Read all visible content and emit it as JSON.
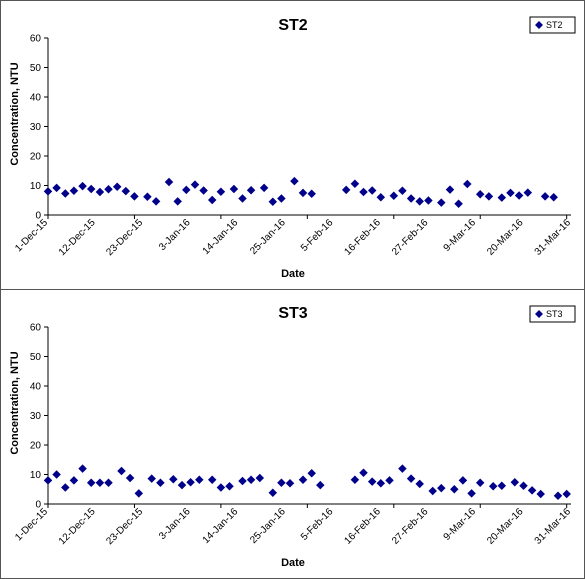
{
  "chart_data": [
    {
      "type": "scatter",
      "title": "ST2",
      "xlabel": "Date",
      "ylabel": "Concentration, NTU",
      "ylim": [
        0,
        60
      ],
      "yticks": [
        0,
        10,
        20,
        30,
        40,
        50,
        60
      ],
      "xlim": [
        "2015-12-01",
        "2016-03-31"
      ],
      "xtick_labels": [
        "1-Dec-15",
        "12-Dec-15",
        "23-Dec-15",
        "3-Jan-16",
        "14-Jan-16",
        "25-Jan-16",
        "5-Feb-16",
        "16-Feb-16",
        "27-Feb-16",
        "9-Mar-16",
        "20-Mar-16",
        "31-Mar-16"
      ],
      "xtick_dates": [
        "2015-12-01",
        "2015-12-12",
        "2015-12-23",
        "2016-01-03",
        "2016-01-14",
        "2016-01-25",
        "2016-02-05",
        "2016-02-16",
        "2016-02-27",
        "2016-03-09",
        "2016-03-20",
        "2016-03-31"
      ],
      "grid": false,
      "legend": "top-right",
      "marker_color": "#00008B",
      "series": [
        {
          "name": "ST2",
          "points": [
            [
              "2015-12-01",
              8
            ],
            [
              "2015-12-03",
              9.2
            ],
            [
              "2015-12-05",
              7.3
            ],
            [
              "2015-12-07",
              8.2
            ],
            [
              "2015-12-09",
              9.8
            ],
            [
              "2015-12-11",
              8.8
            ],
            [
              "2015-12-13",
              7.8
            ],
            [
              "2015-12-15",
              8.7
            ],
            [
              "2015-12-17",
              9.6
            ],
            [
              "2015-12-19",
              8.1
            ],
            [
              "2015-12-21",
              6.3
            ],
            [
              "2015-12-24",
              6.2
            ],
            [
              "2015-12-26",
              4.6
            ],
            [
              "2015-12-29",
              11.2
            ],
            [
              "2015-12-31",
              4.6
            ],
            [
              "2016-01-02",
              8.5
            ],
            [
              "2016-01-04",
              10.3
            ],
            [
              "2016-01-06",
              8.3
            ],
            [
              "2016-01-08",
              5.1
            ],
            [
              "2016-01-10",
              7.9
            ],
            [
              "2016-01-13",
              8.8
            ],
            [
              "2016-01-15",
              5.6
            ],
            [
              "2016-01-17",
              8.4
            ],
            [
              "2016-01-20",
              9.2
            ],
            [
              "2016-01-22",
              4.5
            ],
            [
              "2016-01-24",
              5.6
            ],
            [
              "2016-01-27",
              11.5
            ],
            [
              "2016-01-29",
              7.5
            ],
            [
              "2016-01-31",
              7.2
            ],
            [
              "2016-02-08",
              8.5
            ],
            [
              "2016-02-10",
              10.6
            ],
            [
              "2016-02-12",
              7.8
            ],
            [
              "2016-02-14",
              8.3
            ],
            [
              "2016-02-16",
              6
            ],
            [
              "2016-02-19",
              6.5
            ],
            [
              "2016-02-21",
              8.2
            ],
            [
              "2016-02-23",
              5.6
            ],
            [
              "2016-02-25",
              4.6
            ],
            [
              "2016-02-27",
              4.9
            ],
            [
              "2016-03-01",
              4.2
            ],
            [
              "2016-03-03",
              8.6
            ],
            [
              "2016-03-05",
              3.8
            ],
            [
              "2016-03-07",
              10.5
            ],
            [
              "2016-03-10",
              7
            ],
            [
              "2016-03-12",
              6.3
            ],
            [
              "2016-03-15",
              5.9
            ],
            [
              "2016-03-17",
              7.5
            ],
            [
              "2016-03-19",
              6.6
            ],
            [
              "2016-03-21",
              7.6
            ],
            [
              "2016-03-25",
              6.3
            ],
            [
              "2016-03-27",
              6
            ]
          ]
        }
      ]
    },
    {
      "type": "scatter",
      "title": "ST3",
      "xlabel": "Date",
      "ylabel": "Concentration, NTU",
      "ylim": [
        0,
        60
      ],
      "yticks": [
        0,
        10,
        20,
        30,
        40,
        50,
        60
      ],
      "xlim": [
        "2015-12-01",
        "2016-03-31"
      ],
      "xtick_labels": [
        "1-Dec-15",
        "12-Dec-15",
        "23-Dec-15",
        "3-Jan-16",
        "14-Jan-16",
        "25-Jan-16",
        "5-Feb-16",
        "16-Feb-16",
        "27-Feb-16",
        "9-Mar-16",
        "20-Mar-16",
        "31-Mar-16"
      ],
      "xtick_dates": [
        "2015-12-01",
        "2015-12-12",
        "2015-12-23",
        "2016-01-03",
        "2016-01-14",
        "2016-01-25",
        "2016-02-05",
        "2016-02-16",
        "2016-02-27",
        "2016-03-09",
        "2016-03-20",
        "2016-03-31"
      ],
      "grid": false,
      "legend": "top-right",
      "marker_color": "#00008B",
      "series": [
        {
          "name": "ST3",
          "points": [
            [
              "2015-12-01",
              8
            ],
            [
              "2015-12-03",
              10
            ],
            [
              "2015-12-05",
              5.6
            ],
            [
              "2015-12-07",
              8
            ],
            [
              "2015-12-09",
              12
            ],
            [
              "2015-12-11",
              7.2
            ],
            [
              "2015-12-13",
              7.2
            ],
            [
              "2015-12-15",
              7.2
            ],
            [
              "2015-12-18",
              11.2
            ],
            [
              "2015-12-20",
              8.8
            ],
            [
              "2015-12-22",
              3.6
            ],
            [
              "2015-12-25",
              8.6
            ],
            [
              "2015-12-27",
              7.2
            ],
            [
              "2015-12-30",
              8.4
            ],
            [
              "2016-01-01",
              6.4
            ],
            [
              "2016-01-03",
              7.4
            ],
            [
              "2016-01-05",
              8.2
            ],
            [
              "2016-01-08",
              8.2
            ],
            [
              "2016-01-10",
              5.6
            ],
            [
              "2016-01-12",
              6
            ],
            [
              "2016-01-15",
              7.8
            ],
            [
              "2016-01-17",
              8.2
            ],
            [
              "2016-01-19",
              8.8
            ],
            [
              "2016-01-22",
              3.8
            ],
            [
              "2016-01-24",
              7.2
            ],
            [
              "2016-01-26",
              7
            ],
            [
              "2016-01-29",
              8.2
            ],
            [
              "2016-01-31",
              10.4
            ],
            [
              "2016-02-02",
              6.4
            ],
            [
              "2016-02-10",
              8.2
            ],
            [
              "2016-02-12",
              10.6
            ],
            [
              "2016-02-14",
              7.6
            ],
            [
              "2016-02-16",
              7
            ],
            [
              "2016-02-18",
              8
            ],
            [
              "2016-02-21",
              12
            ],
            [
              "2016-02-23",
              8.6
            ],
            [
              "2016-02-25",
              6.8
            ],
            [
              "2016-02-28",
              4.4
            ],
            [
              "2016-03-01",
              5.4
            ],
            [
              "2016-03-04",
              5
            ],
            [
              "2016-03-06",
              8
            ],
            [
              "2016-03-08",
              3.6
            ],
            [
              "2016-03-10",
              7.2
            ],
            [
              "2016-03-13",
              6
            ],
            [
              "2016-03-15",
              6.2
            ],
            [
              "2016-03-18",
              7.4
            ],
            [
              "2016-03-20",
              6.2
            ],
            [
              "2016-03-22",
              4.6
            ],
            [
              "2016-03-24",
              3.4
            ],
            [
              "2016-03-28",
              2.8
            ],
            [
              "2016-03-30",
              3.4
            ]
          ]
        }
      ]
    }
  ]
}
